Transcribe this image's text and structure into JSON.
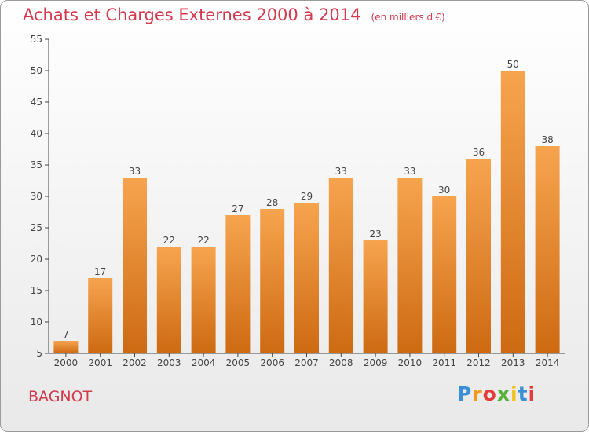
{
  "header": {
    "title": "Achats et Charges Externes 2000 à 2014",
    "unit": "(en milliers d'€)"
  },
  "commune": "BAGNOT",
  "logo": {
    "letters": [
      "P",
      "r",
      "o",
      "x",
      "i",
      "t",
      "i"
    ],
    "colors": [
      "#3a8fd6",
      "#f29a1d",
      "#e23c3c",
      "#57b13a",
      "#f2c21d",
      "#3a8fd6",
      "#e23c3c"
    ]
  },
  "colors": {
    "bar_top": "#f7a44f",
    "bar_bottom": "#cd6a12",
    "title": "#d23a4e"
  },
  "chart_data": {
    "type": "bar",
    "title": "Achats et Charges Externes 2000 à 2014",
    "xlabel": "",
    "ylabel": "",
    "categories": [
      "2000",
      "2001",
      "2002",
      "2003",
      "2004",
      "2005",
      "2006",
      "2007",
      "2008",
      "2009",
      "2010",
      "2011",
      "2012",
      "2013",
      "2014"
    ],
    "values": [
      7,
      17,
      33,
      22,
      22,
      27,
      28,
      29,
      33,
      23,
      33,
      30,
      36,
      50,
      38
    ],
    "ylim": [
      5,
      55
    ],
    "yticks": [
      5,
      10,
      15,
      20,
      25,
      30,
      35,
      40,
      45,
      50,
      55
    ],
    "grid": false,
    "data_labels": true
  }
}
